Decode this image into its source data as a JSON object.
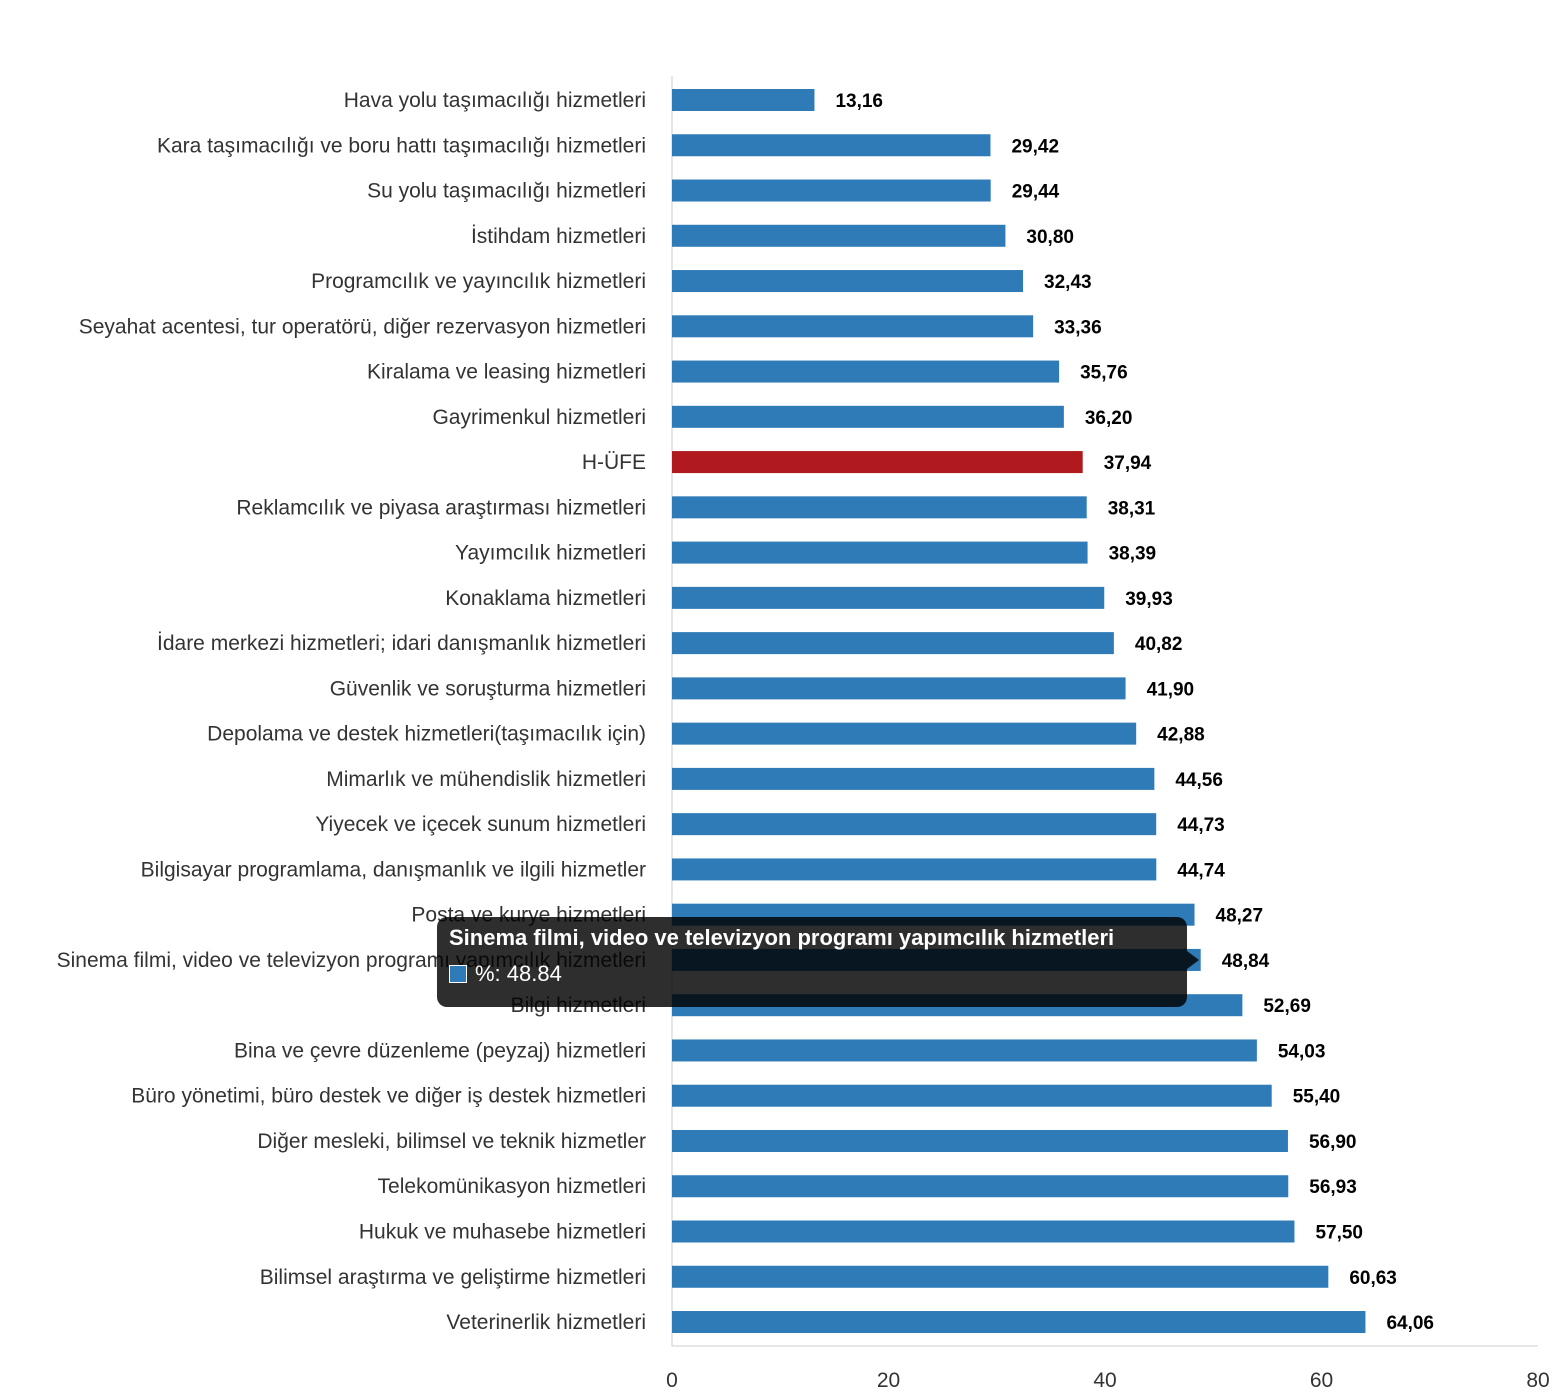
{
  "chart_data": {
    "type": "bar",
    "orientation": "horizontal",
    "categories": [
      "Hava yolu taşımacılığı hizmetleri",
      "Kara taşımacılığı ve boru hattı taşımacılığı hizmetleri",
      "Su yolu taşımacılığı hizmetleri",
      "İstihdam hizmetleri",
      "Programcılık ve yayıncılık hizmetleri",
      "Seyahat acentesi, tur operatörü, diğer rezervasyon hizmetleri",
      "Kiralama ve leasing hizmetleri",
      "Gayrimenkul hizmetleri",
      "H-ÜFE",
      "Reklamcılık ve piyasa araştırması hizmetleri",
      "Yayımcılık hizmetleri",
      "Konaklama hizmetleri",
      "İdare merkezi hizmetleri; idari danışmanlık hizmetleri",
      "Güvenlik ve soruşturma hizmetleri",
      "Depolama ve destek hizmetleri(taşımacılık için)",
      "Mimarlık ve mühendislik hizmetleri",
      "Yiyecek ve içecek sunum hizmetleri",
      "Bilgisayar programlama, danışmanlık ve ilgili hizmetler",
      "Posta ve kurye hizmetleri",
      "Sinema filmi, video ve televizyon programı yapımcılık hizmetleri",
      "Bilgi hizmetleri",
      "Bina ve çevre düzenleme (peyzaj) hizmetleri",
      "Büro yönetimi, büro destek ve diğer iş destek hizmetleri",
      "Diğer mesleki, bilimsel ve teknik hizmetler",
      "Telekomünikasyon hizmetleri",
      "Hukuk ve muhasebe hizmetleri",
      "Bilimsel araştırma ve geliştirme hizmetleri",
      "Veterinerlik hizmetleri"
    ],
    "values": [
      13.16,
      29.42,
      29.44,
      30.8,
      32.43,
      33.36,
      35.76,
      36.2,
      37.94,
      38.31,
      38.39,
      39.93,
      40.82,
      41.9,
      42.88,
      44.56,
      44.73,
      44.74,
      48.27,
      48.84,
      52.69,
      54.03,
      55.4,
      56.9,
      56.93,
      57.5,
      60.63,
      64.06
    ],
    "value_labels": [
      "13,16",
      "29,42",
      "29,44",
      "30,80",
      "32,43",
      "33,36",
      "35,76",
      "36,20",
      "37,94",
      "38,31",
      "38,39",
      "39,93",
      "40,82",
      "41,90",
      "42,88",
      "44,56",
      "44,73",
      "44,74",
      "48,27",
      "48,84",
      "52,69",
      "54,03",
      "55,40",
      "56,90",
      "56,93",
      "57,50",
      "60,63",
      "64,06"
    ],
    "highlight_category": "H-ÜFE",
    "xlim": [
      0,
      80
    ],
    "x_ticks": [
      0,
      20,
      40,
      60,
      80
    ],
    "series_name": "%",
    "colors": {
      "bar": "#2e7bb7",
      "highlight": "#b0191e",
      "axis": "#cccccc"
    }
  },
  "tooltip": {
    "title": "Sinema filmi, video ve televizyon programı yapımcılık hizmetleri",
    "text": "%: 48.84"
  }
}
